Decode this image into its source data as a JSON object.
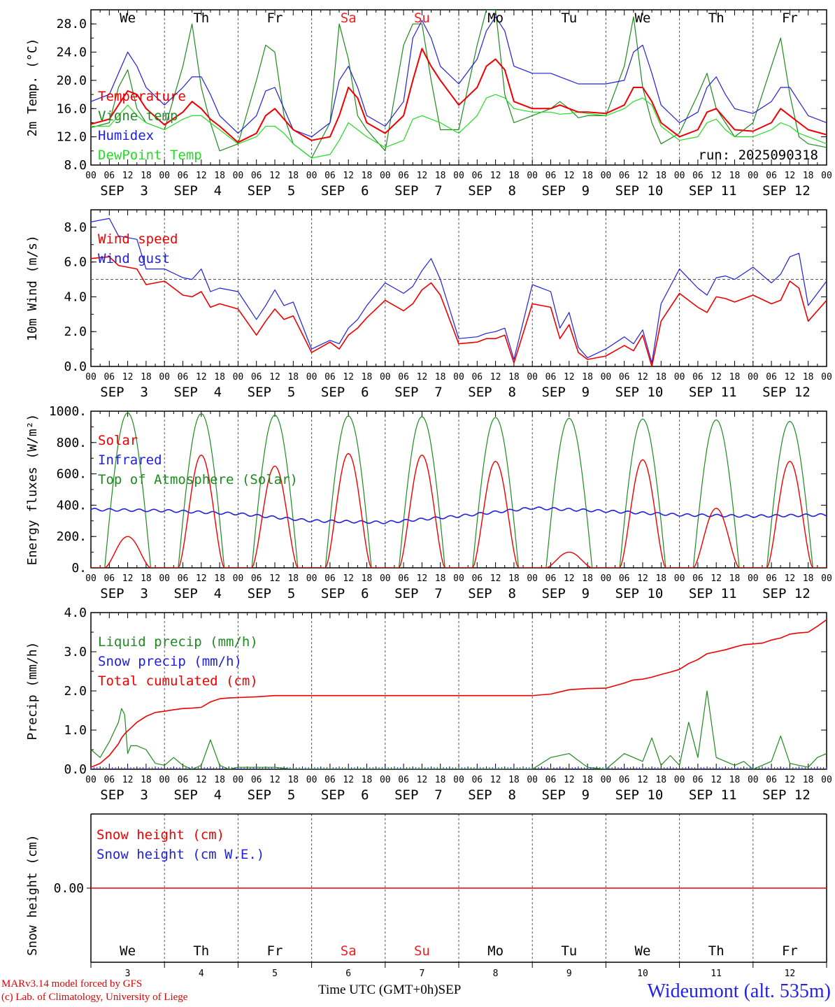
{
  "footer": {
    "credit_line1": "MARv3.14 model forced by GFS",
    "credit_line2": "(c) Lab. of Climatology, University of Liege",
    "station": "Wideumont (alt. 535m)",
    "time_axis_title": "Time UTC (GMT+0h)",
    "month": "SEP"
  },
  "colors": {
    "red": "#ee0000",
    "green": "#1f8a1f",
    "blue": "#2020dd",
    "lightgreen": "#22dd22",
    "weekend": "#ee2020"
  },
  "chart_data": [
    {
      "type": "line",
      "id": "temp",
      "ylabel": "2m Temp. (°C)",
      "ylim": [
        8,
        30
      ],
      "yticks": [
        8,
        12,
        16,
        20,
        24,
        28
      ],
      "ytick_labels": [
        "8.0",
        "12.0",
        "16.0",
        "20.0",
        "24.0",
        "28.0"
      ],
      "weekdays": [
        "We",
        "Th",
        "Fr",
        "Sa",
        "Su",
        "Mo",
        "Tu",
        "We",
        "Th",
        "Fr"
      ],
      "weekend_days": [
        "Sa",
        "Su"
      ],
      "day_labels": [
        "SEP  3",
        "SEP  4",
        "SEP  5",
        "SEP  6",
        "SEP  7",
        "SEP  8",
        "SEP  9",
        "SEP 10",
        "SEP 11",
        "SEP 12"
      ],
      "hour_labels": [
        "00",
        "06",
        "12",
        "18"
      ],
      "annotation": "run: 2025090318",
      "x_hours": [
        0,
        6,
        9,
        12,
        15,
        18,
        24,
        30,
        33,
        36,
        39,
        42,
        48,
        54,
        57,
        60,
        63,
        66,
        72,
        78,
        81,
        84,
        87,
        90,
        96,
        102,
        105,
        108,
        111,
        114,
        120,
        126,
        129,
        132,
        135,
        138,
        144,
        150,
        153,
        156,
        159,
        162,
        168,
        174,
        177,
        180,
        183,
        186,
        192,
        198,
        201,
        204,
        207,
        210,
        216,
        222,
        225,
        228,
        231,
        234,
        240
      ],
      "series": [
        {
          "name": "Temperature",
          "color": "red",
          "values": [
            13.8,
            14.5,
            16.5,
            18.5,
            18,
            16,
            13.7,
            15.5,
            17,
            16,
            14.5,
            13.5,
            11.2,
            12.5,
            15,
            16,
            14.5,
            13,
            11.5,
            12,
            15,
            19,
            17.5,
            14,
            12.5,
            15,
            20,
            24.5,
            22,
            20,
            16.5,
            19,
            22,
            23,
            21.5,
            17,
            16,
            16,
            16.5,
            16,
            15.5,
            15.5,
            15.3,
            16.5,
            19,
            19,
            17,
            14,
            12,
            13,
            15.5,
            16,
            14.5,
            13,
            12.8,
            14,
            16,
            15,
            14,
            13,
            12.3
          ]
        },
        {
          "name": "Vigne temp",
          "color": "green",
          "values": [
            13.3,
            14,
            19,
            21.5,
            16,
            14,
            13,
            22,
            28,
            19,
            14,
            10,
            11,
            20,
            25,
            24,
            15,
            11,
            9,
            14,
            28,
            23,
            15,
            13,
            10,
            25,
            28,
            28,
            20,
            13,
            13,
            25,
            30,
            30,
            18,
            14,
            15,
            16,
            17,
            16,
            14.7,
            15,
            15,
            22,
            29,
            19,
            14,
            11,
            12.5,
            18,
            21,
            16,
            14,
            12,
            14,
            22,
            26,
            18,
            12,
            11,
            10.5
          ]
        },
        {
          "name": "Humidex",
          "color": "blue",
          "values": [
            17,
            18,
            21,
            24,
            22,
            19,
            16.5,
            19,
            20.5,
            20.5,
            18,
            15,
            12.5,
            15,
            18.5,
            19,
            16,
            13,
            12,
            14,
            20,
            22,
            19,
            15,
            13.5,
            17,
            26,
            28.5,
            26,
            22,
            19.5,
            23,
            27,
            29,
            27,
            22,
            21,
            21,
            20.5,
            20,
            19.5,
            19.5,
            19.5,
            20,
            24,
            25,
            21,
            16.5,
            14,
            15.5,
            19,
            20.5,
            18,
            16,
            15.3,
            17,
            19,
            19,
            17,
            15,
            14
          ]
        },
        {
          "name": "DewPoint Temp",
          "color": "lightgreen",
          "values": [
            13.5,
            13.5,
            15,
            16.5,
            15,
            14,
            13,
            14.5,
            15,
            15,
            14,
            13,
            11,
            12,
            13.5,
            13.5,
            12.5,
            11,
            9,
            9.5,
            11.5,
            14,
            13,
            12,
            10.5,
            11.5,
            14.5,
            15,
            14.5,
            14,
            12.5,
            15,
            17.5,
            18,
            17.5,
            16,
            15.5,
            15.5,
            15.2,
            15.3,
            15.5,
            15.3,
            15,
            16,
            17,
            17.5,
            16.5,
            13.5,
            11.5,
            12,
            14,
            14.5,
            13,
            12,
            12,
            13,
            14,
            13.5,
            12.5,
            12,
            11
          ]
        }
      ]
    },
    {
      "type": "line",
      "id": "wind",
      "ylabel": "10m Wind (m/s)",
      "ylim": [
        0,
        9
      ],
      "yticks": [
        0,
        2,
        4,
        6,
        8
      ],
      "ytick_labels": [
        "0.0",
        "2.0",
        "4.0",
        "6.0",
        "8.0"
      ],
      "day_labels": [
        "SEP  3",
        "SEP  4",
        "SEP  5",
        "SEP  6",
        "SEP  7",
        "SEP  8",
        "SEP  9",
        "SEP 10",
        "SEP 11",
        "SEP 12"
      ],
      "hour_labels": [
        "00",
        "06",
        "12",
        "18"
      ],
      "reference_line": 5,
      "x_hours": [
        0,
        6,
        9,
        12,
        15,
        18,
        24,
        30,
        33,
        36,
        39,
        42,
        48,
        54,
        57,
        60,
        63,
        66,
        72,
        78,
        81,
        84,
        87,
        90,
        96,
        102,
        105,
        108,
        111,
        114,
        120,
        126,
        129,
        132,
        135,
        138,
        144,
        150,
        153,
        156,
        159,
        162,
        168,
        174,
        177,
        180,
        183,
        186,
        192,
        198,
        201,
        204,
        207,
        210,
        216,
        222,
        225,
        228,
        231,
        234,
        240
      ],
      "series": [
        {
          "name": "Wind speed",
          "color": "red",
          "values": [
            6.2,
            6.3,
            5.8,
            5.7,
            5.6,
            4.7,
            4.9,
            4.1,
            4.0,
            4.3,
            3.4,
            3.6,
            3.3,
            1.8,
            2.6,
            3.3,
            2.7,
            2.9,
            0.8,
            1.4,
            1.0,
            1.8,
            2.2,
            2.8,
            3.8,
            3.2,
            3.6,
            4.4,
            4.8,
            4.1,
            1.3,
            1.4,
            1.6,
            1.6,
            1.8,
            0.2,
            3.6,
            3.4,
            1.6,
            2.4,
            0.8,
            0.4,
            0.6,
            1.2,
            0.9,
            1.8,
            0.0,
            2.6,
            4.2,
            3.4,
            3.1,
            4.0,
            3.9,
            3.7,
            4.1,
            3.6,
            3.8,
            4.9,
            4.5,
            2.6,
            3.8
          ]
        },
        {
          "name": "Wind gust",
          "color": "blue",
          "values": [
            8.3,
            8.5,
            7.5,
            7.4,
            7.3,
            5.6,
            5.6,
            5.1,
            5.0,
            5.6,
            4.3,
            4.5,
            4.3,
            2.7,
            3.5,
            4.4,
            3.5,
            3.7,
            1.0,
            1.5,
            1.3,
            2.2,
            2.7,
            3.5,
            4.8,
            4.2,
            4.6,
            5.5,
            6.2,
            5.0,
            1.6,
            1.7,
            1.9,
            2.0,
            2.2,
            0.4,
            4.7,
            4.3,
            2.2,
            3.1,
            1.1,
            0.5,
            1.0,
            1.7,
            1.3,
            2.1,
            0.2,
            3.6,
            5.6,
            4.5,
            4.1,
            5.1,
            5.2,
            5.0,
            5.7,
            4.8,
            5.3,
            6.3,
            6.5,
            3.5,
            4.9
          ]
        }
      ]
    },
    {
      "type": "line",
      "id": "energy",
      "ylabel": "Energy fluxes (W/m²)",
      "ylim": [
        0,
        1000
      ],
      "yticks": [
        0,
        200,
        400,
        600,
        800,
        1000
      ],
      "ytick_labels": [
        "0.",
        "200.",
        "400.",
        "600.",
        "800.",
        "1000."
      ],
      "day_labels": [
        "SEP  3",
        "SEP  4",
        "SEP  5",
        "SEP  6",
        "SEP  7",
        "SEP  8",
        "SEP  9",
        "SEP 10",
        "SEP 11",
        "SEP 12"
      ],
      "hour_labels": [
        "00",
        "06",
        "12",
        "18"
      ],
      "toa_peaks": [
        990,
        985,
        975,
        970,
        965,
        960,
        955,
        950,
        945,
        935
      ],
      "solar_peaks": [
        200,
        720,
        650,
        730,
        720,
        680,
        100,
        690,
        380,
        680
      ],
      "infrared_daily": [
        372,
        365,
        345,
        300,
        290,
        330,
        382,
        362,
        338,
        330,
        338
      ],
      "series": [
        {
          "name": "Solar",
          "color": "red"
        },
        {
          "name": "Infrared",
          "color": "blue"
        },
        {
          "name": "Top of Atmosphere (Solar)",
          "color": "green"
        }
      ]
    },
    {
      "type": "line",
      "id": "precip",
      "ylabel": "Precip (mm/h)",
      "ylim": [
        0,
        4
      ],
      "yticks": [
        0,
        1,
        2,
        3,
        4
      ],
      "ytick_labels": [
        "0.0",
        "1.0",
        "2.0",
        "3.0",
        "4.0"
      ],
      "day_labels": [
        "SEP  3",
        "SEP  4",
        "SEP  5",
        "SEP  6",
        "SEP  7",
        "SEP  8",
        "SEP  9",
        "SEP 10",
        "SEP 11",
        "SEP 12"
      ],
      "hour_labels": [
        "00",
        "06",
        "12",
        "18"
      ],
      "x_hours": [
        0,
        3,
        6,
        9,
        10,
        11,
        12,
        13,
        15,
        18,
        21,
        24,
        27,
        30,
        33,
        36,
        39,
        42,
        45,
        48,
        54,
        60,
        66,
        72,
        96,
        120,
        144,
        150,
        156,
        162,
        168,
        174,
        177,
        180,
        183,
        186,
        189,
        192,
        195,
        198,
        201,
        204,
        207,
        210,
        213,
        216,
        219,
        222,
        225,
        228,
        231,
        234,
        237,
        240
      ],
      "series": [
        {
          "name": "Liquid precip (mm/h)",
          "color": "green",
          "values": [
            0.5,
            0.3,
            0.7,
            1.2,
            1.55,
            1.4,
            0.4,
            0.6,
            0.6,
            0.5,
            0.15,
            0.1,
            0.3,
            0.1,
            0.0,
            0.1,
            0.75,
            0.1,
            0.0,
            0.05,
            0.05,
            0.05,
            0.0,
            0.0,
            0.0,
            0.0,
            0.0,
            0.3,
            0.4,
            0.05,
            0.0,
            0.4,
            0.3,
            0.2,
            0.8,
            0.1,
            0.35,
            0.1,
            1.2,
            0.3,
            2.0,
            0.3,
            0.2,
            0.1,
            0.2,
            0.0,
            0.1,
            0.2,
            0.85,
            0.15,
            0.1,
            0.05,
            0.3,
            0.4
          ]
        },
        {
          "name": "Snow precip (mm/h)",
          "color": "blue",
          "values": []
        },
        {
          "name": "Total cumulated (cm)",
          "color": "red",
          "values": [
            0.05,
            0.15,
            0.35,
            0.65,
            0.8,
            0.9,
            0.98,
            1.05,
            1.2,
            1.35,
            1.45,
            1.48,
            1.52,
            1.55,
            1.56,
            1.58,
            1.72,
            1.8,
            1.82,
            1.83,
            1.85,
            1.88,
            1.88,
            1.88,
            1.88,
            1.88,
            1.88,
            1.92,
            2.03,
            2.06,
            2.07,
            2.2,
            2.28,
            2.3,
            2.35,
            2.42,
            2.48,
            2.55,
            2.7,
            2.8,
            2.95,
            3.0,
            3.05,
            3.12,
            3.18,
            3.2,
            3.22,
            3.3,
            3.35,
            3.45,
            3.48,
            3.5,
            3.65,
            3.82
          ]
        }
      ]
    },
    {
      "type": "line",
      "id": "snow",
      "ylabel": "Snow height (cm)",
      "ylim": [
        -1,
        1
      ],
      "yticks": [
        0
      ],
      "ytick_labels": [
        "0.00"
      ],
      "weekdays": [
        "We",
        "Th",
        "Fr",
        "Sa",
        "Su",
        "Mo",
        "Tu",
        "We",
        "Th",
        "Fr"
      ],
      "weekend_days": [
        "Sa",
        "Su"
      ],
      "day_numbers": [
        "3",
        "4",
        "5",
        "6",
        "7",
        "8",
        "9",
        "10",
        "11",
        "12"
      ],
      "series": [
        {
          "name": "Snow height (cm)",
          "color": "red",
          "values": [
            0,
            0
          ]
        },
        {
          "name": "Snow height (cm W.E.)",
          "color": "blue",
          "values": []
        }
      ]
    }
  ]
}
